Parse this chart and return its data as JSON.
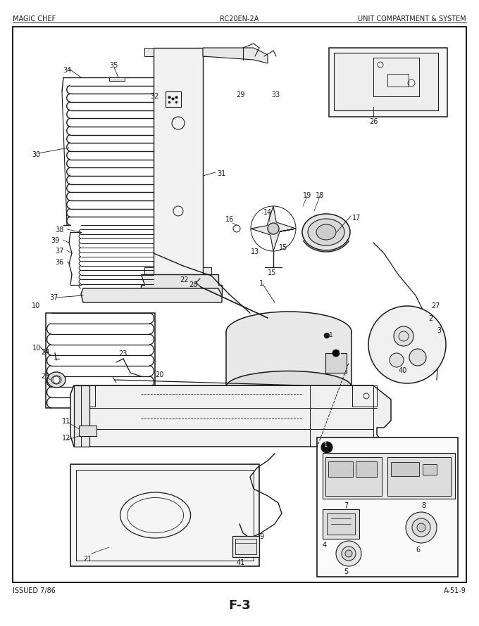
{
  "title": "F-3",
  "header_left": "MAGIC CHEF",
  "header_center": "RC20EN-2A",
  "header_right": "UNIT COMPARTMENT & SYSTEM",
  "footer_left": "ISSUED 7/86",
  "footer_right": "A-51-9",
  "bg_color": "#ffffff",
  "figsize": [
    6.8,
    8.9
  ],
  "dpi": 100
}
